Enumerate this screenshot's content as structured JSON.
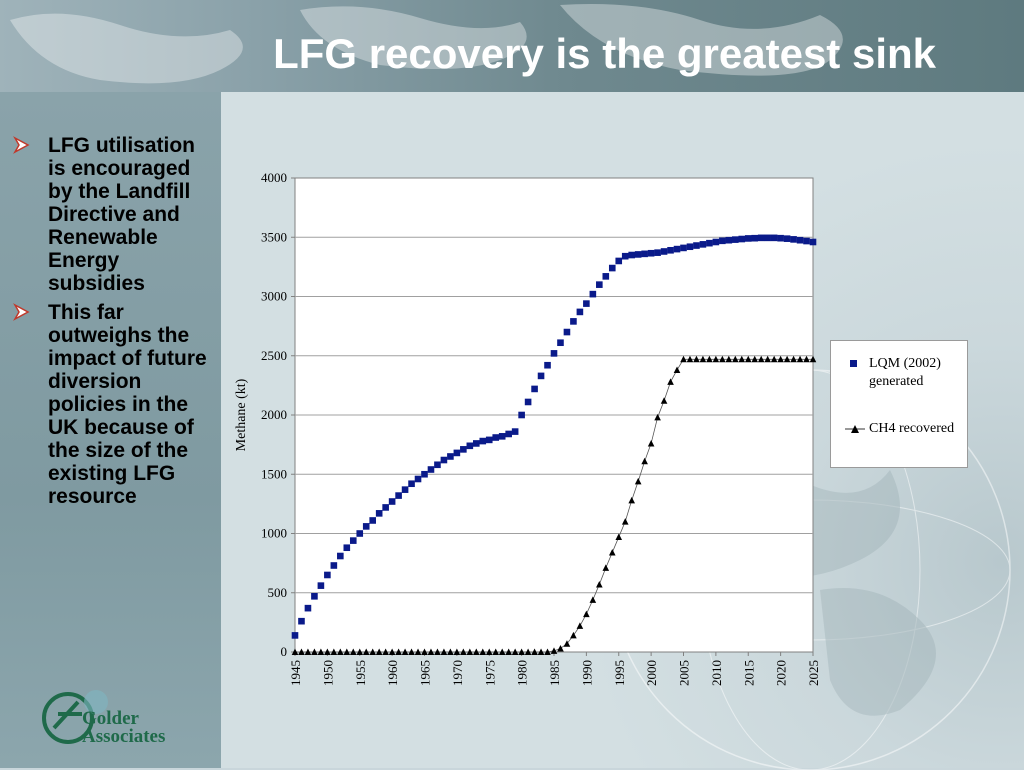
{
  "slide": {
    "title": "LFG recovery is the greatest sink",
    "bullets": [
      "LFG utilisation is encouraged by the Landfill Directive and Renewable Energy subsidies",
      "This far outweighs the impact of future diversion policies in the UK because of the size of the existing LFG resource"
    ],
    "logo": {
      "line1": "Golder",
      "line2": "Associates"
    }
  },
  "colors": {
    "series1": "#0a1a8a",
    "series2": "#000000",
    "title_text": "#ffffff",
    "logo": "#1f6a4a"
  },
  "icons": {
    "bullet": "arrow-bullet-icon",
    "logo": "golder-globe-logo-icon"
  },
  "chart_data": {
    "type": "scatter",
    "title": "",
    "xlabel": "",
    "ylabel": "Methane (kt)",
    "xlim": [
      1945,
      2025
    ],
    "ylim": [
      0,
      4000
    ],
    "xticks": [
      "1945",
      "1950",
      "1955",
      "1960",
      "1965",
      "1970",
      "1975",
      "1980",
      "1985",
      "1990",
      "1995",
      "2000",
      "2005",
      "2010",
      "2015",
      "2020",
      "2025"
    ],
    "yticks": [
      "0",
      "500",
      "1000",
      "1500",
      "2000",
      "2500",
      "3000",
      "3500",
      "4000"
    ],
    "grid": "horizontal",
    "legend": "right",
    "series": [
      {
        "name": "LQM (2002) generated",
        "marker": "square",
        "x": [
          1945,
          1946,
          1947,
          1948,
          1949,
          1950,
          1951,
          1952,
          1953,
          1954,
          1955,
          1956,
          1957,
          1958,
          1959,
          1960,
          1961,
          1962,
          1963,
          1964,
          1965,
          1966,
          1967,
          1968,
          1969,
          1970,
          1971,
          1972,
          1973,
          1974,
          1975,
          1976,
          1977,
          1978,
          1979,
          1980,
          1981,
          1982,
          1983,
          1984,
          1985,
          1986,
          1987,
          1988,
          1989,
          1990,
          1991,
          1992,
          1993,
          1994,
          1995,
          1996,
          1997,
          1998,
          1999,
          2000,
          2001,
          2002,
          2003,
          2004,
          2005,
          2006,
          2007,
          2008,
          2009,
          2010,
          2011,
          2012,
          2013,
          2014,
          2015,
          2016,
          2017,
          2018,
          2019,
          2020,
          2021,
          2022,
          2023,
          2024,
          2025
        ],
        "y": [
          140,
          260,
          370,
          470,
          560,
          650,
          730,
          810,
          880,
          940,
          1000,
          1060,
          1110,
          1170,
          1220,
          1270,
          1320,
          1370,
          1420,
          1460,
          1500,
          1540,
          1580,
          1620,
          1650,
          1680,
          1710,
          1740,
          1760,
          1780,
          1790,
          1810,
          1820,
          1840,
          1860,
          2000,
          2110,
          2220,
          2330,
          2420,
          2520,
          2610,
          2700,
          2790,
          2870,
          2940,
          3020,
          3100,
          3170,
          3240,
          3300,
          3340,
          3350,
          3355,
          3360,
          3365,
          3370,
          3380,
          3390,
          3400,
          3410,
          3420,
          3430,
          3440,
          3450,
          3460,
          3470,
          3475,
          3480,
          3485,
          3490,
          3492,
          3495,
          3495,
          3495,
          3492,
          3488,
          3482,
          3475,
          3468,
          3460
        ]
      },
      {
        "name": "CH4 recovered",
        "marker": "triangle",
        "x": [
          1945,
          1946,
          1947,
          1948,
          1949,
          1950,
          1951,
          1952,
          1953,
          1954,
          1955,
          1956,
          1957,
          1958,
          1959,
          1960,
          1961,
          1962,
          1963,
          1964,
          1965,
          1966,
          1967,
          1968,
          1969,
          1970,
          1971,
          1972,
          1973,
          1974,
          1975,
          1976,
          1977,
          1978,
          1979,
          1980,
          1981,
          1982,
          1983,
          1984,
          1985,
          1986,
          1987,
          1988,
          1989,
          1990,
          1991,
          1992,
          1993,
          1994,
          1995,
          1996,
          1997,
          1998,
          1999,
          2000,
          2001,
          2002,
          2003,
          2004,
          2005,
          2006,
          2007,
          2008,
          2009,
          2010,
          2011,
          2012,
          2013,
          2014,
          2015,
          2016,
          2017,
          2018,
          2019,
          2020,
          2021,
          2022,
          2023,
          2024,
          2025
        ],
        "y": [
          0,
          0,
          0,
          0,
          0,
          0,
          0,
          0,
          0,
          0,
          0,
          0,
          0,
          0,
          0,
          0,
          0,
          0,
          0,
          0,
          0,
          0,
          0,
          0,
          0,
          0,
          0,
          0,
          0,
          0,
          0,
          0,
          0,
          0,
          0,
          0,
          0,
          0,
          0,
          0,
          10,
          30,
          70,
          140,
          220,
          320,
          440,
          570,
          710,
          840,
          970,
          1100,
          1280,
          1440,
          1610,
          1760,
          1980,
          2120,
          2280,
          2380,
          2470,
          2470,
          2470,
          2470,
          2470,
          2470,
          2470,
          2470,
          2470,
          2470,
          2470,
          2470,
          2470,
          2470,
          2470,
          2470,
          2470,
          2470,
          2470,
          2470,
          2470
        ]
      }
    ]
  }
}
